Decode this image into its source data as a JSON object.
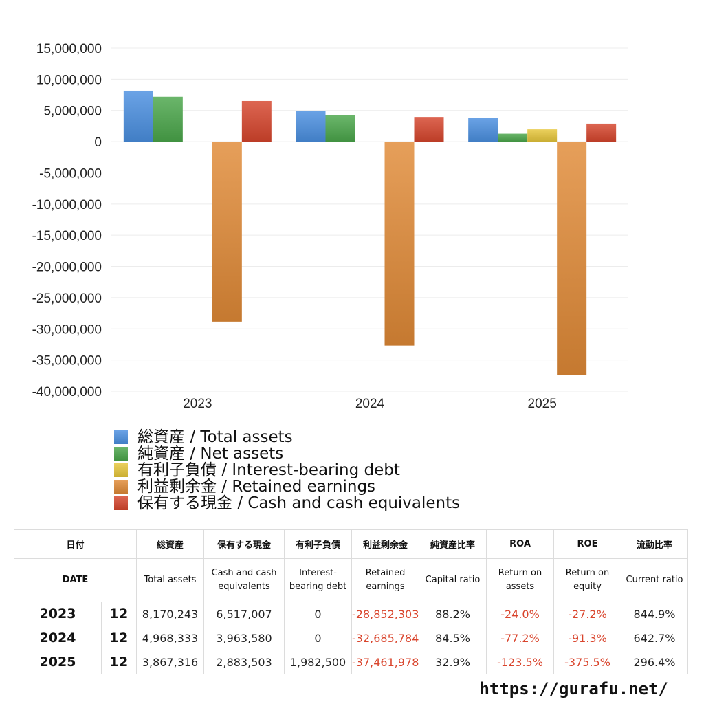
{
  "chart_data": {
    "type": "bar",
    "categories": [
      "2023",
      "2024",
      "2025"
    ],
    "series": [
      {
        "name": "総資産 / Total assets",
        "values": [
          8170243,
          4968333,
          3867316
        ],
        "color": "#4a8fe0"
      },
      {
        "name": "純資産 / Net assets",
        "values": [
          7200000,
          4200000,
          1270000
        ],
        "color": "#4aa64a"
      },
      {
        "name": "有利子負債 / Interest-bearing debt",
        "values": [
          0,
          0,
          1982500
        ],
        "color": "#e6c63a"
      },
      {
        "name": "利益剰余金 / Retained earnings",
        "values": [
          -28852303,
          -32685784,
          -37461978
        ],
        "color": "#e08a36"
      },
      {
        "name": "保有する現金 /  Cash and cash equivalents",
        "values": [
          6517007,
          3963580,
          2883503
        ],
        "color": "#d6452c"
      }
    ],
    "yticks": [
      "15,000,000",
      "10,000,000",
      "5,000,000",
      "0",
      "-5,000,000",
      "-10,000,000",
      "-15,000,000",
      "-20,000,000",
      "-25,000,000",
      "-30,000,000",
      "-35,000,000",
      "-40,000,000"
    ],
    "ylim": [
      -40000000,
      15000000
    ],
    "grid": true,
    "legend_position": "bottom"
  },
  "table": {
    "header_jp": [
      "日付",
      "総資産",
      "保有する現金",
      "有利子負債",
      "利益剰余金",
      "純資産比率",
      "ROA",
      "ROE",
      "流動比率"
    ],
    "header_en": [
      "DATE",
      "Total assets",
      "Cash and cash equivalents",
      "Interest-bearing debt",
      "Retained earnings",
      "Capital ratio",
      "Return on assets",
      "Return on equity",
      "Current ratio"
    ],
    "rows": [
      {
        "year": "2023",
        "month": "12",
        "total_assets": "8,170,243",
        "cash": "6,517,007",
        "debt": "0",
        "retained": "-28,852,303",
        "capital_ratio": "88.2%",
        "roa": "-24.0%",
        "roe": "-27.2%",
        "current_ratio": "844.9%"
      },
      {
        "year": "2024",
        "month": "12",
        "total_assets": "4,968,333",
        "cash": "3,963,580",
        "debt": "0",
        "retained": "-32,685,784",
        "capital_ratio": "84.5%",
        "roa": "-77.2%",
        "roe": "-91.3%",
        "current_ratio": "642.7%"
      },
      {
        "year": "2025",
        "month": "12",
        "total_assets": "3,867,316",
        "cash": "2,883,503",
        "debt": "1,982,500",
        "retained": "-37,461,978",
        "capital_ratio": "32.9%",
        "roa": "-123.5%",
        "roe": "-375.5%",
        "current_ratio": "296.4%"
      }
    ]
  },
  "footer": {
    "url": "https://gurafu.net/"
  }
}
